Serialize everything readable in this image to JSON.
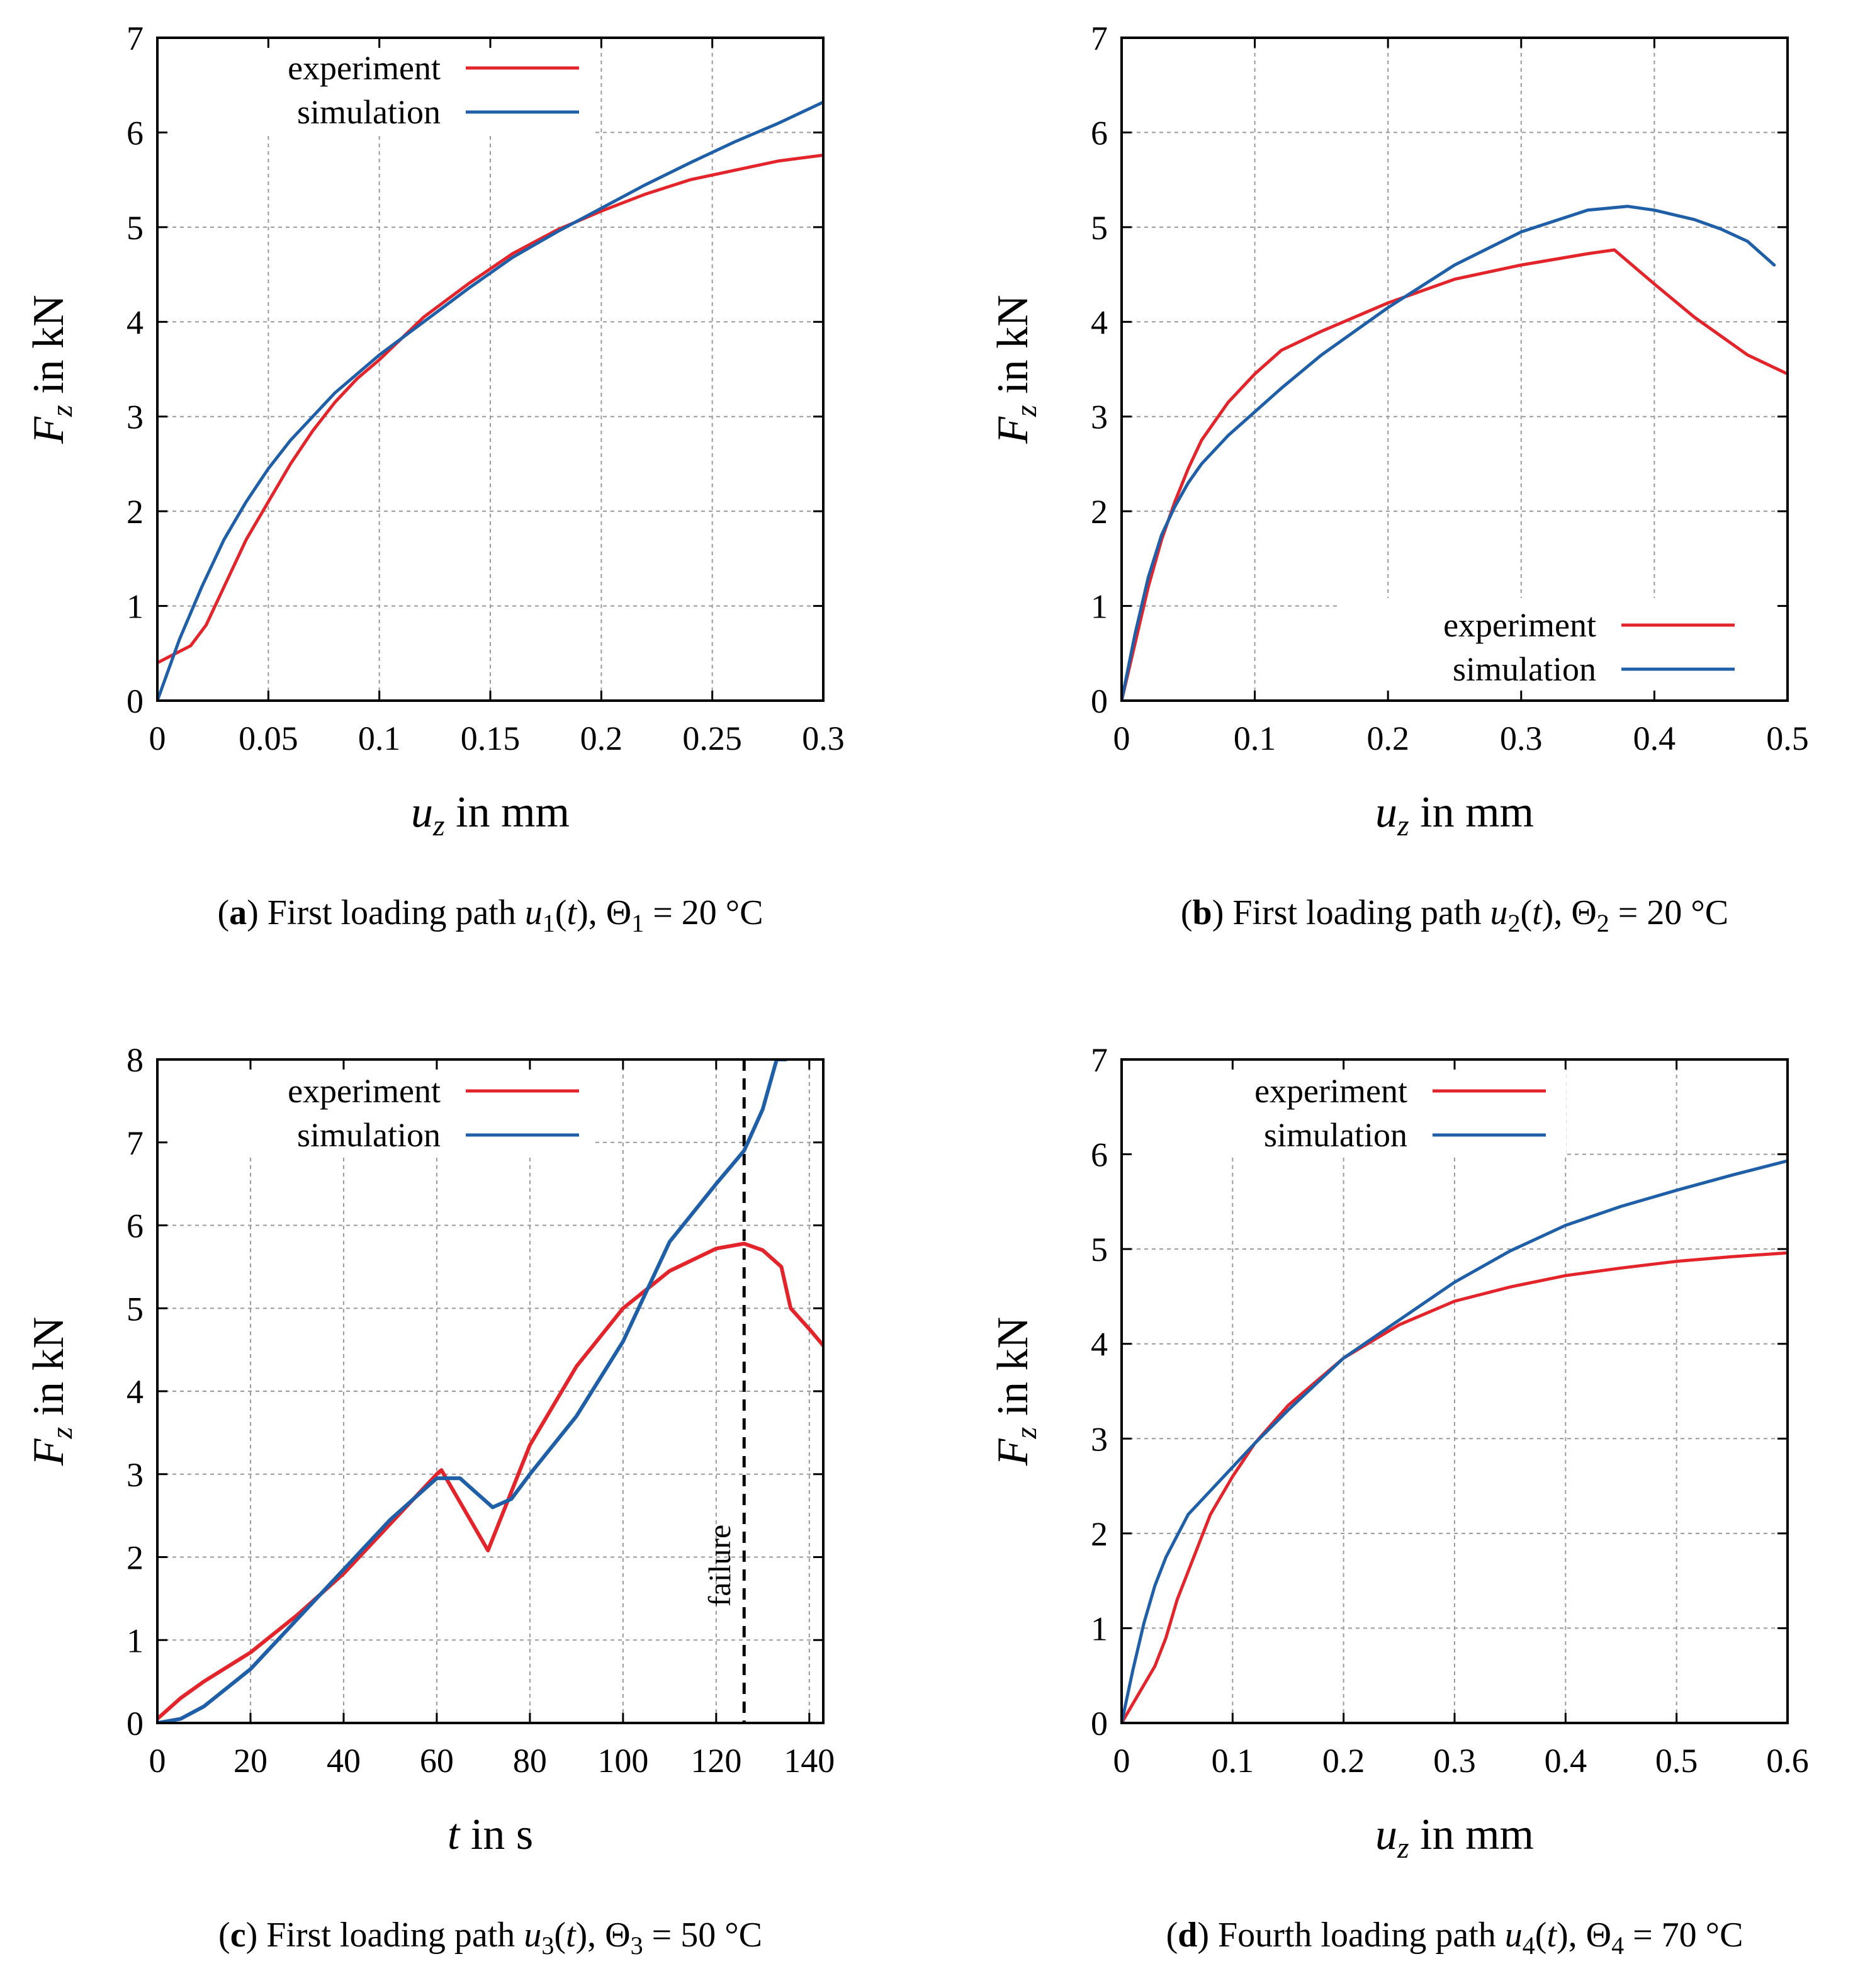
{
  "chart_data": [
    {
      "panel": "a",
      "type": "line",
      "caption": {
        "letter": "(a)",
        "text": "First loading path",
        "path_var": "u",
        "path_sub": "1",
        "theta_sub": "1",
        "temperature": "= 20 °C"
      },
      "xlabel": {
        "var": "u",
        "sub": "z",
        "unit": "in mm"
      },
      "ylabel": {
        "var": "F",
        "sub": "z",
        "unit": "in kN"
      },
      "xlim": [
        0,
        0.3
      ],
      "ylim": [
        0,
        7
      ],
      "xticks": [
        0,
        0.05,
        0.1,
        0.15,
        0.2,
        0.25,
        0.3
      ],
      "xtick_labels": [
        "0",
        "0.05",
        "0.1",
        "0.15",
        "0.2",
        "0.25",
        "0.3"
      ],
      "yticks": [
        0,
        1,
        2,
        3,
        4,
        5,
        6,
        7
      ],
      "ytick_labels": [
        "0",
        "1",
        "2",
        "3",
        "4",
        "5",
        "6",
        "7"
      ],
      "grid": true,
      "legend_position": "top-left",
      "series": [
        {
          "name": "experiment",
          "color": "#e3242b",
          "x": [
            0,
            0.015,
            0.022,
            0.03,
            0.04,
            0.05,
            0.06,
            0.07,
            0.08,
            0.09,
            0.1,
            0.12,
            0.14,
            0.16,
            0.18,
            0.2,
            0.22,
            0.24,
            0.26,
            0.28,
            0.3
          ],
          "y": [
            0.4,
            0.58,
            0.8,
            1.2,
            1.7,
            2.1,
            2.5,
            2.85,
            3.15,
            3.4,
            3.6,
            4.05,
            4.4,
            4.72,
            4.97,
            5.17,
            5.35,
            5.5,
            5.6,
            5.7,
            5.76
          ]
        },
        {
          "name": "simulation",
          "color": "#1f5fa8",
          "x": [
            0,
            0.01,
            0.02,
            0.03,
            0.04,
            0.05,
            0.06,
            0.08,
            0.1,
            0.12,
            0.14,
            0.16,
            0.18,
            0.2,
            0.22,
            0.24,
            0.26,
            0.28,
            0.3
          ],
          "y": [
            0,
            0.65,
            1.2,
            1.7,
            2.1,
            2.45,
            2.75,
            3.25,
            3.65,
            4.0,
            4.35,
            4.68,
            4.95,
            5.2,
            5.45,
            5.68,
            5.9,
            6.1,
            6.32
          ]
        }
      ]
    },
    {
      "panel": "b",
      "type": "line",
      "caption": {
        "letter": "(b)",
        "text": "First loading path",
        "path_var": "u",
        "path_sub": "2",
        "theta_sub": "2",
        "temperature": "= 20 °C"
      },
      "xlabel": {
        "var": "u",
        "sub": "z",
        "unit": "in mm"
      },
      "ylabel": {
        "var": "F",
        "sub": "z",
        "unit": "in kN"
      },
      "xlim": [
        0,
        0.5
      ],
      "ylim": [
        0,
        7
      ],
      "xticks": [
        0,
        0.1,
        0.2,
        0.3,
        0.4,
        0.5
      ],
      "xtick_labels": [
        "0",
        "0.1",
        "0.2",
        "0.3",
        "0.4",
        "0.5"
      ],
      "yticks": [
        0,
        1,
        2,
        3,
        4,
        5,
        6,
        7
      ],
      "ytick_labels": [
        "0",
        "1",
        "2",
        "3",
        "4",
        "5",
        "6",
        "7"
      ],
      "grid": true,
      "legend_position": "bottom-right",
      "series": [
        {
          "name": "experiment",
          "color": "#e3242b",
          "x": [
            0,
            0.01,
            0.02,
            0.03,
            0.04,
            0.05,
            0.06,
            0.08,
            0.1,
            0.12,
            0.15,
            0.2,
            0.25,
            0.3,
            0.35,
            0.37,
            0.4,
            0.43,
            0.45,
            0.47,
            0.5
          ],
          "y": [
            0,
            0.6,
            1.2,
            1.7,
            2.1,
            2.45,
            2.75,
            3.15,
            3.45,
            3.7,
            3.9,
            4.2,
            4.45,
            4.6,
            4.72,
            4.76,
            4.4,
            4.05,
            3.85,
            3.65,
            3.45
          ]
        },
        {
          "name": "simulation",
          "color": "#1f5fa8",
          "x": [
            0,
            0.01,
            0.02,
            0.03,
            0.04,
            0.05,
            0.06,
            0.08,
            0.1,
            0.12,
            0.15,
            0.2,
            0.25,
            0.3,
            0.35,
            0.38,
            0.4,
            0.43,
            0.45,
            0.47,
            0.49
          ],
          "y": [
            0,
            0.7,
            1.3,
            1.75,
            2.05,
            2.3,
            2.5,
            2.8,
            3.05,
            3.3,
            3.65,
            4.15,
            4.6,
            4.95,
            5.18,
            5.22,
            5.18,
            5.08,
            4.98,
            4.85,
            4.6
          ]
        }
      ]
    },
    {
      "panel": "c",
      "type": "line",
      "caption": {
        "letter": "(c)",
        "text": "First loading path",
        "path_var": "u",
        "path_sub": "3",
        "theta_sub": "3",
        "temperature": "= 50 °C"
      },
      "xlabel": {
        "var": "t",
        "sub": "",
        "unit": "in s"
      },
      "ylabel": {
        "var": "F",
        "sub": "z",
        "unit": "in kN"
      },
      "xlim": [
        0,
        143
      ],
      "ylim": [
        0,
        8
      ],
      "xticks": [
        0,
        20,
        40,
        60,
        80,
        100,
        120,
        140
      ],
      "xtick_labels": [
        "0",
        "20",
        "40",
        "60",
        "80",
        "100",
        "120",
        "140"
      ],
      "yticks": [
        0,
        1,
        2,
        3,
        4,
        5,
        6,
        7,
        8
      ],
      "ytick_labels": [
        "0",
        "1",
        "2",
        "3",
        "4",
        "5",
        "6",
        "7",
        "8"
      ],
      "grid": true,
      "legend_position": "top-left",
      "annotation": {
        "label": "failure",
        "x": 126
      },
      "series": [
        {
          "name": "experiment",
          "color": "#e3242b",
          "x": [
            0,
            5,
            10,
            20,
            30,
            40,
            50,
            60,
            61,
            71,
            80,
            90,
            100,
            110,
            120,
            126,
            130,
            134,
            136,
            140,
            143
          ],
          "y": [
            0.05,
            0.3,
            0.5,
            0.85,
            1.3,
            1.8,
            2.4,
            3.0,
            3.05,
            2.08,
            3.35,
            4.3,
            5.0,
            5.45,
            5.72,
            5.78,
            5.7,
            5.5,
            5.0,
            4.75,
            4.55
          ]
        },
        {
          "name": "simulation",
          "color": "#1f5fa8",
          "x": [
            0,
            5,
            10,
            20,
            30,
            40,
            50,
            60,
            65,
            68,
            72,
            76,
            80,
            90,
            100,
            110,
            120,
            126,
            130,
            133,
            135
          ],
          "y": [
            0,
            0.05,
            0.2,
            0.65,
            1.25,
            1.85,
            2.45,
            2.95,
            2.95,
            2.8,
            2.6,
            2.7,
            3.0,
            3.7,
            4.6,
            5.8,
            6.5,
            6.9,
            7.4,
            8.0,
            8.0
          ]
        }
      ]
    },
    {
      "panel": "d",
      "type": "line",
      "caption": {
        "letter": "(d)",
        "text": "Fourth loading path",
        "path_var": "u",
        "path_sub": "4",
        "theta_sub": "4",
        "temperature": "= 70 °C"
      },
      "xlabel": {
        "var": "u",
        "sub": "z",
        "unit": "in mm"
      },
      "ylabel": {
        "var": "F",
        "sub": "z",
        "unit": "in kN"
      },
      "xlim": [
        0,
        0.6
      ],
      "ylim": [
        0,
        7
      ],
      "xticks": [
        0,
        0.1,
        0.2,
        0.3,
        0.4,
        0.5,
        0.6
      ],
      "xtick_labels": [
        "0",
        "0.1",
        "0.2",
        "0.3",
        "0.4",
        "0.5",
        "0.6"
      ],
      "yticks": [
        0,
        1,
        2,
        3,
        4,
        5,
        6,
        7
      ],
      "ytick_labels": [
        "0",
        "1",
        "2",
        "3",
        "4",
        "5",
        "6",
        "7"
      ],
      "grid": true,
      "legend_position": "top-left",
      "series": [
        {
          "name": "experiment",
          "color": "#e3242b",
          "x": [
            0,
            0.02,
            0.03,
            0.04,
            0.05,
            0.06,
            0.08,
            0.1,
            0.12,
            0.15,
            0.2,
            0.25,
            0.3,
            0.35,
            0.4,
            0.45,
            0.5,
            0.55,
            0.6
          ],
          "y": [
            0,
            0.4,
            0.6,
            0.9,
            1.3,
            1.6,
            2.2,
            2.6,
            2.95,
            3.35,
            3.85,
            4.2,
            4.45,
            4.6,
            4.72,
            4.8,
            4.87,
            4.92,
            4.96
          ]
        },
        {
          "name": "simulation",
          "color": "#1f5fa8",
          "x": [
            0,
            0.01,
            0.02,
            0.03,
            0.04,
            0.06,
            0.08,
            0.1,
            0.12,
            0.15,
            0.2,
            0.25,
            0.3,
            0.35,
            0.4,
            0.45,
            0.5,
            0.55,
            0.6
          ],
          "y": [
            0,
            0.55,
            1.05,
            1.45,
            1.75,
            2.2,
            2.45,
            2.7,
            2.95,
            3.3,
            3.85,
            4.25,
            4.65,
            4.98,
            5.25,
            5.45,
            5.62,
            5.78,
            5.93
          ]
        }
      ]
    }
  ]
}
